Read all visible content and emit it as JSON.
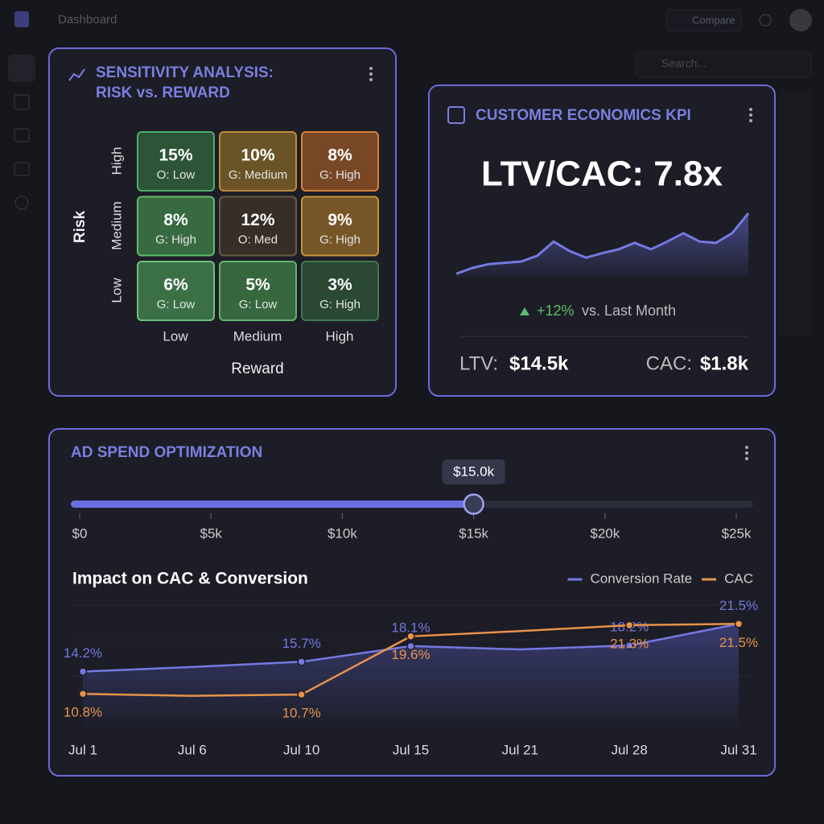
{
  "app": {
    "title": "Dashboard",
    "compare": "Compare",
    "search": "Search..."
  },
  "sensitivity": {
    "title": [
      "SENSITIVITY ANALYSIS:",
      "RISK vs. REWARD"
    ],
    "y_label": "Risk",
    "x_label": "Reward",
    "rows": [
      "High",
      "Medium",
      "Low"
    ],
    "columns": [
      "Low",
      "Medium",
      "High"
    ],
    "cells": [
      [
        {
          "value": "15%",
          "note": "O: Low",
          "color": "#2d5437",
          "border": "#4fae68"
        },
        {
          "value": "10%",
          "note": "G: Medium",
          "color": "#6a5427",
          "border": "#c08a3a"
        },
        {
          "value": "8%",
          "note": "G: High",
          "color": "#784826",
          "border": "#d7803a"
        }
      ],
      [
        {
          "value": "8%",
          "note": "G: High",
          "color": "#386a41",
          "border": "#5cbd6a"
        },
        {
          "value": "12%",
          "note": "O: Med",
          "color": "#372e28",
          "border": "#6a5a48"
        },
        {
          "value": "9%",
          "note": "G: High",
          "color": "#765628",
          "border": "#c9923a"
        }
      ],
      [
        {
          "value": "6%",
          "note": "G: Low",
          "color": "#3b7046",
          "border": "#6cc37a"
        },
        {
          "value": "5%",
          "note": "G: Low",
          "color": "#37673f",
          "border": "#62b46f"
        },
        {
          "value": "3%",
          "note": "G: High",
          "color": "#2a4834",
          "border": "#3f7a50"
        }
      ]
    ]
  },
  "kpi": {
    "title": "CUSTOMER ECONOMICS KPI",
    "headline": "LTV/CAC: 7.8x",
    "trend": {
      "type": "line",
      "values": [
        6,
        15,
        21,
        23,
        25,
        34,
        56,
        41,
        31,
        38,
        44,
        54,
        44,
        56,
        69,
        56,
        54,
        69,
        100
      ],
      "ylim": [
        0,
        100
      ],
      "color": "#7479e0"
    },
    "change": "+12%",
    "change_note": "vs. Last Month",
    "ltv_label": "LTV:",
    "ltv": "$14.5k",
    "cac_label": "CAC:",
    "cac": "$1.8k"
  },
  "ad_spend": {
    "title": "AD SPEND OPTIMIZATION",
    "slider": {
      "value": 15000,
      "value_label": "$15.0k",
      "xlim": [
        0,
        25000
      ],
      "xticks": [
        {
          "value": 0,
          "label": "$0"
        },
        {
          "value": 5000,
          "label": "$5k"
        },
        {
          "value": 10000,
          "label": "$10k"
        },
        {
          "value": 15000,
          "label": "$15k"
        },
        {
          "value": 20000,
          "label": "$20k"
        },
        {
          "value": 25000,
          "label": "$25k"
        }
      ]
    }
  },
  "chart_data": {
    "type": "line",
    "title": "Impact on CAC & Conversion",
    "categories": [
      "Jul 1",
      "Jul 6",
      "Jul 10",
      "Jul 15",
      "Jul 21",
      "Jul 28",
      "Jul 31"
    ],
    "series": [
      {
        "name": "Conversion Rate",
        "color": "#7479e0",
        "values": [
          14.2,
          14.9,
          15.7,
          18.1,
          17.6,
          18.2,
          21.5
        ],
        "value_labels": [
          "14.2%",
          null,
          "15.7%",
          "18.1%",
          null,
          "18.2%",
          "21.5%"
        ]
      },
      {
        "name": "CAC",
        "color": "#e8934a",
        "values": [
          10.8,
          10.5,
          10.7,
          19.6,
          20.4,
          21.3,
          21.5
        ],
        "value_labels": [
          "10.8%",
          null,
          "10.7%",
          "19.6%",
          null,
          "21.3%",
          "21.5%"
        ]
      }
    ],
    "ylim": [
      8,
      24
    ],
    "legend": "top-right"
  }
}
